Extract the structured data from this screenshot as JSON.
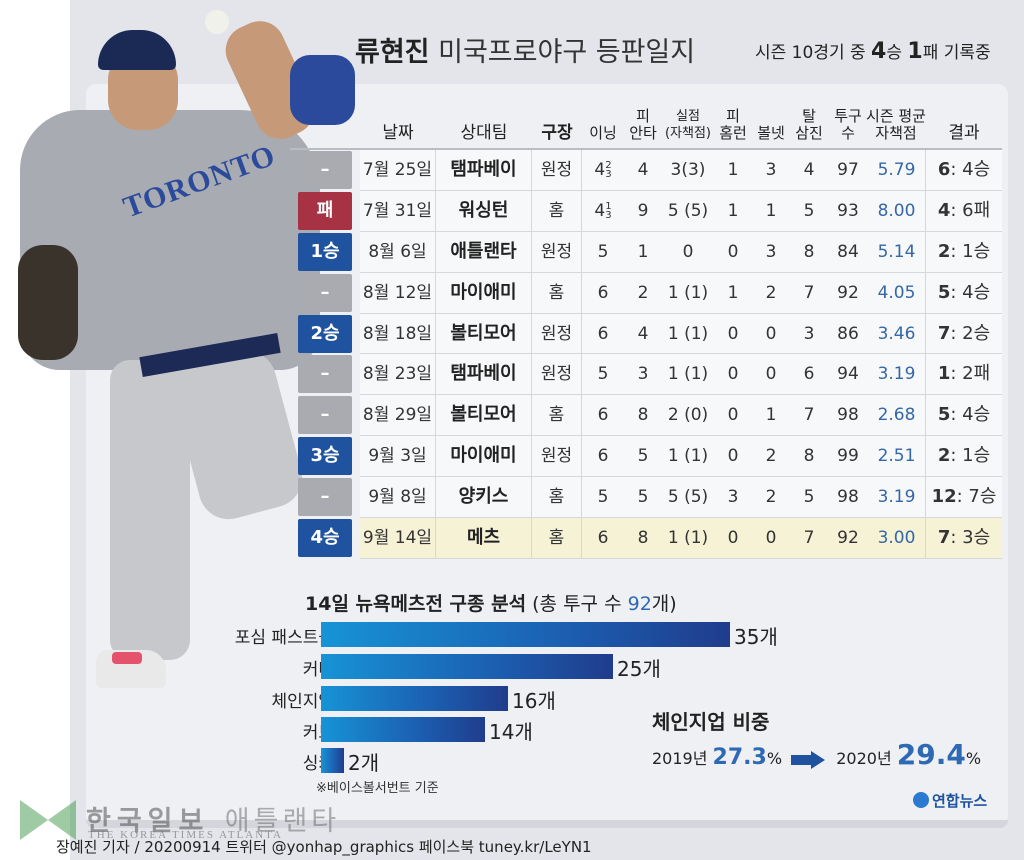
{
  "header": {
    "title_bold": "류현진",
    "title_rest": "미국프로야구 등판일지",
    "subtitle_pre": "시즌 10경기 중",
    "subtitle_wins": "4",
    "subtitle_win_unit": "승",
    "subtitle_losses": "1",
    "subtitle_loss_unit": "패 기록중"
  },
  "table": {
    "columns": [
      {
        "key": "date",
        "label": "날짜"
      },
      {
        "key": "opponent",
        "label": "상대팀"
      },
      {
        "key": "venue",
        "label": "구장"
      },
      {
        "key": "innings",
        "label": "이닝"
      },
      {
        "key": "hits",
        "label_top": "피",
        "label": "안타"
      },
      {
        "key": "runs",
        "label_top": "실점",
        "label": "(자책점)"
      },
      {
        "key": "hr",
        "label_top": "피",
        "label": "홈런"
      },
      {
        "key": "bb",
        "label": "볼넷"
      },
      {
        "key": "so",
        "label_top": "탈",
        "label": "삼진"
      },
      {
        "key": "pitches",
        "label_top": "투구",
        "label": "수"
      },
      {
        "key": "era",
        "label_top": "시즌 평균",
        "label": "자책점"
      },
      {
        "key": "result",
        "label": "결과"
      }
    ],
    "rows": [
      {
        "badge": "–",
        "badge_type": "dash",
        "date": "7월 25일",
        "opponent": "탬파베이",
        "venue": "원정",
        "innings_whole": "4",
        "innings_frac_num": "2",
        "innings_frac_den": "3",
        "hits": "4",
        "runs": "3(3)",
        "hr": "1",
        "bb": "3",
        "so": "4",
        "pitches": "97",
        "era": "5.79",
        "score_team": "6",
        "score_rest": ": 4승"
      },
      {
        "badge": "패",
        "badge_type": "loss",
        "date": "7월 31일",
        "opponent": "워싱턴",
        "venue": "홈",
        "innings_whole": "4",
        "innings_frac_num": "1",
        "innings_frac_den": "3",
        "hits": "9",
        "runs": "5 (5)",
        "hr": "1",
        "bb": "1",
        "so": "5",
        "pitches": "93",
        "era": "8.00",
        "score_team": "4",
        "score_rest": ": 6패"
      },
      {
        "badge": "1승",
        "badge_type": "win",
        "date": "8월 6일",
        "opponent": "애틀랜타",
        "venue": "원정",
        "innings_whole": "5",
        "hits": "1",
        "runs": "0",
        "hr": "0",
        "bb": "3",
        "so": "8",
        "pitches": "84",
        "era": "5.14",
        "score_team": "2",
        "score_rest": ": 1승"
      },
      {
        "badge": "–",
        "badge_type": "dash",
        "date": "8월 12일",
        "opponent": "마이애미",
        "venue": "홈",
        "innings_whole": "6",
        "hits": "2",
        "runs": "1 (1)",
        "hr": "1",
        "bb": "2",
        "so": "7",
        "pitches": "92",
        "era": "4.05",
        "score_team": "5",
        "score_rest": ": 4승"
      },
      {
        "badge": "2승",
        "badge_type": "win",
        "date": "8월 18일",
        "opponent": "볼티모어",
        "venue": "원정",
        "innings_whole": "6",
        "hits": "4",
        "runs": "1 (1)",
        "hr": "0",
        "bb": "0",
        "so": "3",
        "pitches": "86",
        "era": "3.46",
        "score_team": "7",
        "score_rest": ": 2승"
      },
      {
        "badge": "–",
        "badge_type": "dash",
        "date": "8월 23일",
        "opponent": "탬파베이",
        "venue": "원정",
        "innings_whole": "5",
        "hits": "3",
        "runs": "1 (1)",
        "hr": "0",
        "bb": "0",
        "so": "6",
        "pitches": "94",
        "era": "3.19",
        "score_team": "1",
        "score_rest": ": 2패"
      },
      {
        "badge": "–",
        "badge_type": "dash",
        "date": "8월 29일",
        "opponent": "볼티모어",
        "venue": "홈",
        "innings_whole": "6",
        "hits": "8",
        "runs": "2 (0)",
        "hr": "0",
        "bb": "1",
        "so": "7",
        "pitches": "98",
        "era": "2.68",
        "score_team": "5",
        "score_rest": ": 4승"
      },
      {
        "badge": "3승",
        "badge_type": "win",
        "date": "9월 3일",
        "opponent": "마이애미",
        "venue": "원정",
        "innings_whole": "6",
        "hits": "5",
        "runs": "1 (1)",
        "hr": "0",
        "bb": "2",
        "so": "8",
        "pitches": "99",
        "era": "2.51",
        "score_team": "2",
        "score_rest": ": 1승"
      },
      {
        "badge": "–",
        "badge_type": "dash",
        "date": "9월 8일",
        "opponent": "양키스",
        "venue": "홈",
        "innings_whole": "5",
        "hits": "5",
        "runs": "5 (5)",
        "hr": "3",
        "bb": "2",
        "so": "5",
        "pitches": "98",
        "era": "3.19",
        "score_team": "12",
        "score_rest": ": 7승"
      },
      {
        "badge": "4승",
        "badge_type": "win",
        "date": "9월 14일",
        "opponent": "메츠",
        "venue": "홈",
        "innings_whole": "6",
        "hits": "8",
        "runs": "1 (1)",
        "hr": "0",
        "bb": "0",
        "so": "7",
        "pitches": "92",
        "era": "3.00",
        "score_team": "7",
        "score_rest": ": 3승",
        "highlight": true
      }
    ]
  },
  "pitch_chart": {
    "title_pre": "14일 뉴욕메츠전 구종 분석",
    "title_paren_pre": "(총 투구 수",
    "total": "92",
    "title_paren_post": "개)",
    "items": [
      {
        "label": "포심 패스트볼",
        "value": "35개"
      },
      {
        "label": "커터",
        "value": "25개"
      },
      {
        "label": "체인지업",
        "value": "16개"
      },
      {
        "label": "커브",
        "value": "14개"
      },
      {
        "label": "싱커",
        "value": "2개"
      }
    ],
    "footnote": "※베이스볼서번트 기준"
  },
  "chart_data": {
    "type": "bar",
    "orientation": "horizontal",
    "title": "14일 뉴욕메츠전 구종 분석 (총 투구 수 92개)",
    "categories": [
      "포심 패스트볼",
      "커터",
      "체인지업",
      "커브",
      "싱커"
    ],
    "values": [
      35,
      25,
      16,
      14,
      2
    ],
    "unit": "개",
    "xlabel": "",
    "ylabel": "",
    "grid": false,
    "note": "※베이스볼서번트 기준"
  },
  "changeup_ratio": {
    "title": "체인지업 비중",
    "year1": "2019년",
    "pct1": "27.3",
    "year2": "2020년",
    "pct2": "29.4",
    "pct_sign": "%"
  },
  "source_logo": "연합뉴스",
  "watermark": {
    "main": "한국일보",
    "sub_ko": "애틀랜타",
    "sub_en": "THE KOREA TIMES ATLANTA"
  },
  "credit": "장예진 기자 / 20200914 트위터 @yonhap_graphics  페이스북 tuney.kr/LeYN1",
  "colors": {
    "win_badge": "#1f53a0",
    "loss_badge": "#a63243",
    "dash_badge": "#a9abb0",
    "era_text": "#3566a8",
    "highlight_row": "#f5f2d6",
    "bar_start": "#1793d6",
    "bar_end": "#203c8c"
  }
}
